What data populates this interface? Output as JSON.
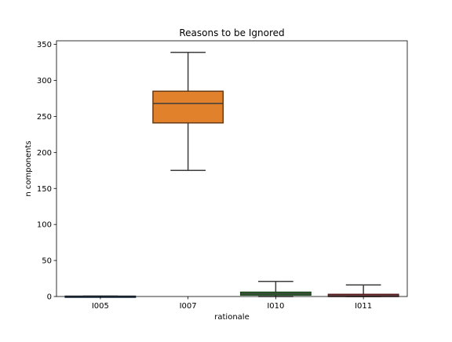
{
  "chart_data": {
    "type": "box",
    "title": "Reasons to be Ignored",
    "xlabel": "rationale",
    "ylabel": "n components",
    "categories": [
      "I005",
      "I007",
      "I010",
      "I011"
    ],
    "ylim": [
      0,
      355
    ],
    "yticks": [
      0,
      50,
      100,
      150,
      200,
      250,
      300,
      350
    ],
    "grid": false,
    "legend": "none",
    "boxes": [
      {
        "category": "I005",
        "whisker_low": 0,
        "q1": 0,
        "median": 0,
        "q3": 0.5,
        "whisker_high": 0.5,
        "color": "#3a6ea5"
      },
      {
        "category": "I007",
        "whisker_low": 175,
        "q1": 241,
        "median": 268,
        "q3": 285,
        "whisker_high": 339,
        "color": "#e1812c"
      },
      {
        "category": "I010",
        "whisker_low": 0,
        "q1": 2,
        "median": 4,
        "q3": 6,
        "whisker_high": 21,
        "color": "#3a923a"
      },
      {
        "category": "I011",
        "whisker_low": 0,
        "q1": 0,
        "median": 1,
        "q3": 3,
        "whisker_high": 16,
        "color": "#c03d3e"
      }
    ]
  }
}
